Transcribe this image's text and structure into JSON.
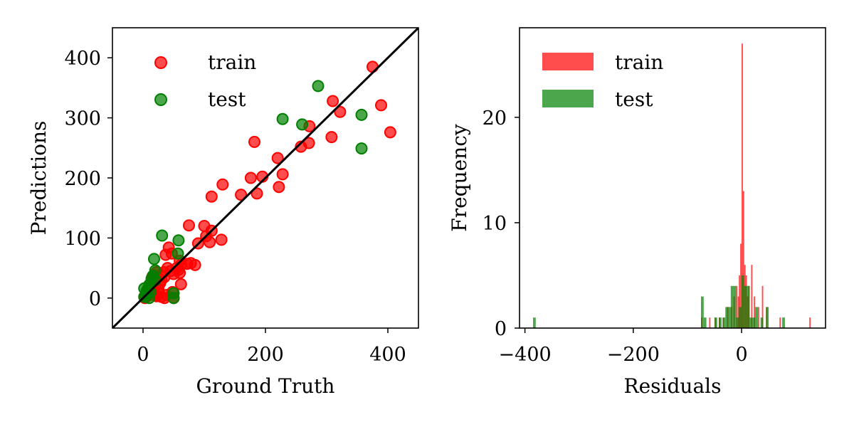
{
  "chart_data": [
    {
      "type": "scatter",
      "title": "",
      "xlabel": "Ground Truth",
      "ylabel": "Predictions",
      "xlim": [
        -50,
        450
      ],
      "ylim": [
        -50,
        450
      ],
      "xticks": [
        0,
        200,
        400
      ],
      "yticks": [
        0,
        100,
        200,
        300,
        400
      ],
      "xtick_labels": [
        "0",
        "200",
        "400"
      ],
      "ytick_labels": [
        "0",
        "100",
        "200",
        "300",
        "400"
      ],
      "grid": false,
      "legend_position": "top-left",
      "reference_line": {
        "x": [
          -50,
          450
        ],
        "y": [
          -50,
          450
        ],
        "color": "#000000"
      },
      "series": [
        {
          "name": "train",
          "color": "#ff0000",
          "points": [
            [
              375,
              385
            ],
            [
              310,
              328
            ],
            [
              389,
              321
            ],
            [
              322,
              310
            ],
            [
              404,
              276
            ],
            [
              308,
              268
            ],
            [
              272,
              286
            ],
            [
              271,
              258
            ],
            [
              258,
              252
            ],
            [
              182,
              260
            ],
            [
              220,
              233
            ],
            [
              228,
              206
            ],
            [
              222,
              185
            ],
            [
              176,
              200
            ],
            [
              195,
              202
            ],
            [
              186,
              174
            ],
            [
              160,
              172
            ],
            [
              130,
              189
            ],
            [
              112,
              169
            ],
            [
              75,
              121
            ],
            [
              100,
              120
            ],
            [
              112,
              112
            ],
            [
              103,
              103
            ],
            [
              109,
              93
            ],
            [
              128,
              97
            ],
            [
              90,
              91
            ],
            [
              42,
              84
            ],
            [
              85,
              55
            ],
            [
              60,
              62
            ],
            [
              62,
              55
            ],
            [
              78,
              58
            ],
            [
              72,
              57
            ],
            [
              55,
              50
            ],
            [
              45,
              45
            ],
            [
              37,
              72
            ],
            [
              47,
              74
            ],
            [
              58,
              47
            ],
            [
              50,
              40
            ],
            [
              62,
              23
            ],
            [
              34,
              43
            ],
            [
              40,
              50
            ],
            [
              22,
              43
            ],
            [
              18,
              38
            ],
            [
              30,
              30
            ],
            [
              28,
              25
            ],
            [
              20,
              20
            ],
            [
              15,
              12
            ],
            [
              10,
              5
            ],
            [
              5,
              2
            ],
            [
              22,
              3
            ],
            [
              30,
              2
            ],
            [
              35,
              0
            ],
            [
              50,
              0
            ],
            [
              48,
              10
            ],
            [
              12,
              22
            ],
            [
              8,
              10
            ],
            [
              25,
              15
            ],
            [
              18,
              5
            ],
            [
              3,
              0
            ],
            [
              15,
              35
            ],
            [
              35,
              35
            ],
            [
              60,
              42
            ],
            [
              38,
              5
            ],
            [
              26,
              8
            ],
            [
              14,
              28
            ]
          ]
        },
        {
          "name": "test",
          "color": "#008000",
          "points": [
            [
              286,
              353
            ],
            [
              228,
              298
            ],
            [
              357,
              249
            ],
            [
              260,
              289
            ],
            [
              357,
              305
            ],
            [
              31,
              104
            ],
            [
              58,
              96
            ],
            [
              18,
              65
            ],
            [
              57,
              74
            ],
            [
              20,
              46
            ],
            [
              16,
              37
            ],
            [
              14,
              32
            ],
            [
              20,
              30
            ],
            [
              10,
              22
            ],
            [
              8,
              16
            ],
            [
              2,
              16
            ],
            [
              5,
              5
            ],
            [
              10,
              0
            ],
            [
              50,
              8
            ],
            [
              50,
              0
            ],
            [
              2,
              2
            ],
            [
              12,
              10
            ],
            [
              6,
              12
            ]
          ]
        }
      ]
    },
    {
      "type": "histogram",
      "title": "",
      "xlabel": "Residuals",
      "ylabel": "Frequency",
      "xlim": [
        -410,
        155
      ],
      "ylim": [
        0,
        28.5
      ],
      "xticks": [
        -400,
        -200,
        0
      ],
      "yticks": [
        0,
        10,
        20
      ],
      "xtick_labels": [
        "−400",
        "−200",
        "0"
      ],
      "ytick_labels": [
        "0",
        "10",
        "20"
      ],
      "grid": false,
      "legend_position": "top-left",
      "series": [
        {
          "name": "train",
          "color": "#ff0000",
          "bin_width": 2.5,
          "bins": [
            [
              -75,
              1
            ],
            [
              -60,
              1
            ],
            [
              -50,
              1
            ],
            [
              -42,
              1
            ],
            [
              -35,
              1
            ],
            [
              -27,
              2
            ],
            [
              -20,
              2
            ],
            [
              -15,
              3
            ],
            [
              -10,
              4
            ],
            [
              -7,
              3
            ],
            [
              -5,
              5
            ],
            [
              -2.5,
              8
            ],
            [
              0,
              27
            ],
            [
              2.5,
              13
            ],
            [
              5,
              6
            ],
            [
              7.5,
              5
            ],
            [
              10,
              3
            ],
            [
              12.5,
              4
            ],
            [
              17.5,
              6
            ],
            [
              22.5,
              3
            ],
            [
              30,
              2
            ],
            [
              37.5,
              4
            ],
            [
              45,
              2
            ],
            [
              70,
              1
            ],
            [
              125,
              1
            ]
          ]
        },
        {
          "name": "test",
          "color": "#008000",
          "bin_width": 5,
          "bins": [
            [
              -385,
              1
            ],
            [
              -75,
              3
            ],
            [
              -70,
              1
            ],
            [
              -50,
              1
            ],
            [
              -42,
              1
            ],
            [
              -35,
              1
            ],
            [
              -30,
              2
            ],
            [
              -25,
              2
            ],
            [
              -20,
              4
            ],
            [
              -15,
              4
            ],
            [
              -10,
              1
            ],
            [
              -5,
              2
            ],
            [
              0,
              5
            ],
            [
              5,
              4
            ],
            [
              10,
              4
            ],
            [
              15,
              1
            ],
            [
              20,
              1
            ],
            [
              25,
              2
            ],
            [
              35,
              1
            ],
            [
              45,
              2
            ],
            [
              75,
              1
            ]
          ]
        }
      ]
    }
  ]
}
